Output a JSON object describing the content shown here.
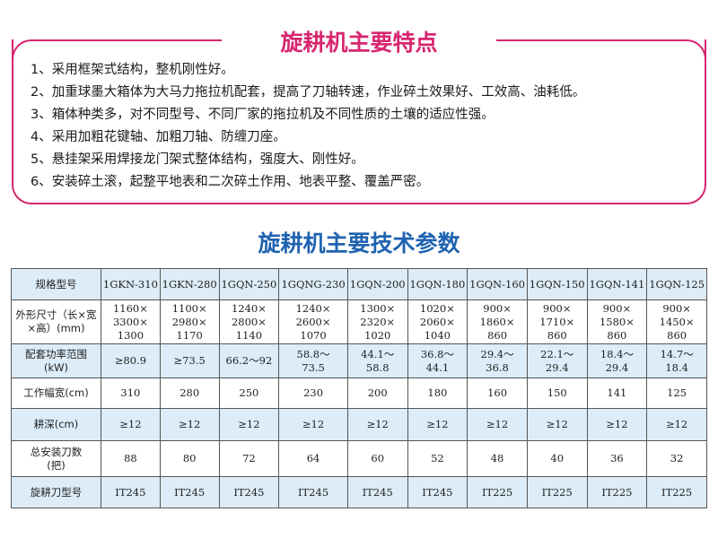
{
  "features": {
    "title": "旋耕机主要特点",
    "items": [
      "1、采用框架式结构，整机刚性好。",
      "2、加重球墨大箱体为大马力拖拉机配套，提高了刀轴转速，作业碎土效果好、工效高、油耗低。",
      "3、箱体种类多，对不同型号、不同厂家的拖拉机及不同性质的土壤的适应性强。",
      "4、采用加粗花键轴、加粗刀轴、防缠刀座。",
      "5、悬挂架采用焊接龙门架式整体结构，强度大、刚性好。",
      "6、安装碎土滚，起整平地表和二次碎土作用、地表平整、覆盖严密。"
    ]
  },
  "specs": {
    "title": "旋耕机主要技术参数",
    "rows": [
      {
        "label": "规格型号",
        "values": [
          "1GKN-310",
          "1GKN-280",
          "1GQN-250",
          "1GQNG-230",
          "1GQN-200",
          "1GQN-180",
          "1GQN-160",
          "1GQN-150",
          "1GQN-141",
          "1GQN-125"
        ]
      },
      {
        "label": "外形尺寸（长×宽×高）(mm)",
        "values": [
          "1160×\n3300×\n1300",
          "1100×\n2980×\n1170",
          "1240×\n2800×\n1140",
          "1240×\n2600×\n1070",
          "1300×\n2320×\n1020",
          "1020×\n2060×\n1040",
          "900×\n1860×\n860",
          "900×\n1710×\n860",
          "900×\n1580×\n860",
          "900×\n1450×\n860"
        ]
      },
      {
        "label": "配套功率范围\n(kW)",
        "values": [
          "≥80.9",
          "≥73.5",
          "66.2～92",
          "58.8～\n73.5",
          "44.1～\n58.8",
          "36.8～\n44.1",
          "29.4～\n36.8",
          "22.1～\n29.4",
          "18.4～\n29.4",
          "14.7～\n18.4"
        ]
      },
      {
        "label": "工作幅宽(cm)",
        "values": [
          "310",
          "280",
          "250",
          "230",
          "200",
          "180",
          "160",
          "150",
          "141",
          "125"
        ]
      },
      {
        "label": "耕深(cm)",
        "values": [
          "≥12",
          "≥12",
          "≥12",
          "≥12",
          "≥12",
          "≥12",
          "≥12",
          "≥12",
          "≥12",
          "≥12"
        ]
      },
      {
        "label": "总安装刀数\n(把)",
        "values": [
          "88",
          "80",
          "72",
          "64",
          "60",
          "52",
          "48",
          "40",
          "36",
          "32"
        ]
      },
      {
        "label": "旋耕刀型号",
        "values": [
          "IT245",
          "IT245",
          "IT245",
          "IT245",
          "IT245",
          "IT245",
          "IT225",
          "IT225",
          "IT225",
          "IT225"
        ]
      }
    ]
  },
  "colors": {
    "accent_pink": "#d7266f",
    "accent_blue": "#1f63b0",
    "row_shade": "#dcecf8"
  }
}
